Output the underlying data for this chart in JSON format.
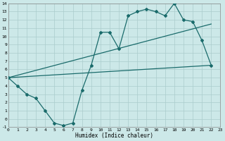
{
  "xlabel": "Humidex (Indice chaleur)",
  "bg_color": "#cce8e8",
  "grid_color": "#aacccc",
  "line_color": "#1a6b6b",
  "x_min": 0,
  "x_max": 23,
  "y_min": -1,
  "y_max": 14,
  "x_ticks": [
    0,
    1,
    2,
    3,
    4,
    5,
    6,
    7,
    8,
    9,
    10,
    11,
    12,
    13,
    14,
    15,
    16,
    17,
    18,
    19,
    20,
    21,
    22,
    23
  ],
  "y_ticks": [
    -1,
    0,
    1,
    2,
    3,
    4,
    5,
    6,
    7,
    8,
    9,
    10,
    11,
    12,
    13,
    14
  ],
  "line1_x": [
    0,
    1,
    2,
    3,
    4,
    5,
    6,
    7,
    8,
    9,
    10,
    11,
    12,
    13,
    14,
    15,
    16,
    17,
    18,
    19,
    20,
    21,
    22
  ],
  "line1_y": [
    5,
    4,
    3,
    2.5,
    1,
    -0.5,
    -0.8,
    -0.5,
    3.5,
    6.5,
    10.5,
    10.5,
    8.5,
    12.5,
    13,
    13.3,
    13,
    12.5,
    14,
    12,
    11.8,
    9.5,
    6.5
  ],
  "line2_x": [
    0,
    22
  ],
  "line2_y": [
    5,
    6.5
  ],
  "line3_x": [
    0,
    22
  ],
  "line3_y": [
    5,
    11.5
  ]
}
